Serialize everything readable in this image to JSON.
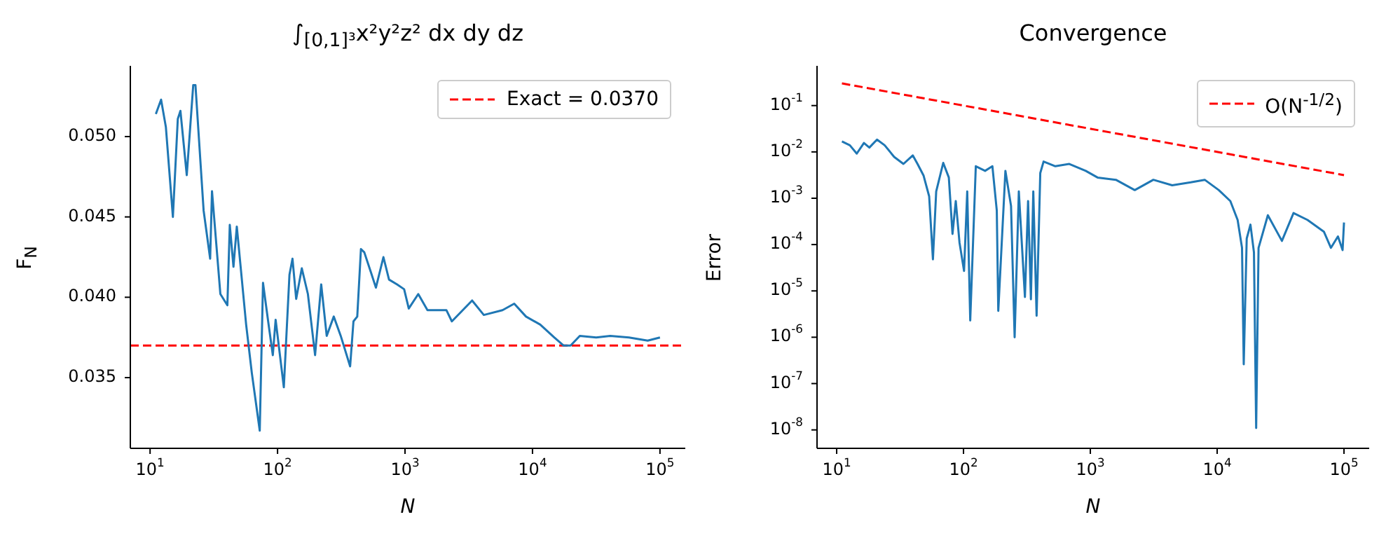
{
  "chart_data": [
    {
      "type": "line",
      "title": "∫$_{[0,1]³}$x²y²z² dx dy dz",
      "xlabel": "N",
      "ylabel": "F$_{N}$",
      "log": "x",
      "legend": "top right",
      "x": [
        11.1,
        12.2,
        13.3,
        15.1,
        16.5,
        17.3,
        19.4,
        21.8,
        22.7,
        26.3,
        29.6,
        30.6,
        35.6,
        40.4,
        42.2,
        45.1,
        47.9,
        56.7,
        62.8,
        72.5,
        76.9,
        84.4,
        91.8,
        96.6,
        112,
        124,
        131,
        140,
        155,
        173,
        197,
        220,
        243,
        276,
        313,
        371,
        394,
        422,
        451,
        479,
        543,
        591,
        677,
        749,
        866,
        984,
        1070,
        1270,
        1500,
        2110,
        2330,
        3360,
        4150,
        5820,
        7190,
        8890,
        11500,
        14800,
        17500,
        19900,
        23500,
        31600,
        40700,
        57100,
        80100,
        100000
      ],
      "series": [
        {
          "color": "#1f77b4",
          "values": [
            0.0514,
            0.0523,
            0.0506,
            0.045,
            0.0511,
            0.0516,
            0.0476,
            0.0532,
            0.0532,
            0.0454,
            0.0424,
            0.0466,
            0.0402,
            0.0395,
            0.0445,
            0.0419,
            0.0444,
            0.0383,
            0.0353,
            0.0317,
            0.0409,
            0.0385,
            0.0364,
            0.0386,
            0.0344,
            0.0414,
            0.0424,
            0.0399,
            0.0418,
            0.0402,
            0.0364,
            0.0408,
            0.0376,
            0.0388,
            0.0376,
            0.0357,
            0.0385,
            0.0388,
            0.043,
            0.0428,
            0.0415,
            0.0406,
            0.0425,
            0.0411,
            0.0408,
            0.0405,
            0.0393,
            0.0402,
            0.0392,
            0.0392,
            0.0385,
            0.0398,
            0.0389,
            0.0392,
            0.0396,
            0.0388,
            0.0383,
            0.0375,
            0.037,
            0.037,
            0.0376,
            0.0375,
            0.0376,
            0.0375,
            0.0373,
            0.0375
          ]
        }
      ],
      "ref_lines": [
        {
          "axis": "y",
          "value": 0.037,
          "label": "Exact = 0.0370",
          "color": "#ff0000",
          "line_style": "dashed"
        }
      ],
      "xlim": [
        7,
        158000
      ],
      "xticks": [
        {
          "value": 10,
          "label": "10$^{1}$"
        },
        {
          "value": 100,
          "label": "10$^{2}$"
        },
        {
          "value": 1000,
          "label": "10$^{3}$"
        },
        {
          "value": 10000,
          "label": "10$^{4}$"
        },
        {
          "value": 100000,
          "label": "10$^{5}$"
        }
      ],
      "ylim": [
        0.0306,
        0.0544
      ],
      "yticks": [
        {
          "value": 0.035,
          "label": "0.035"
        },
        {
          "value": 0.04,
          "label": "0.040"
        },
        {
          "value": 0.045,
          "label": "0.045"
        },
        {
          "value": 0.05,
          "label": "0.050"
        }
      ]
    },
    {
      "type": "line",
      "title": "Convergence",
      "xlabel": "N",
      "ylabel": "Error",
      "log": "xy",
      "legend": "top right",
      "series": [
        {
          "color": "#1f77b4",
          "x": [
            11,
            12.7,
            14.4,
            16.4,
            18.1,
            20.8,
            23.9,
            28.4,
            33.6,
            39.8,
            43.4,
            48.4,
            53.6,
            57.4,
            60.9,
            69.2,
            76.6,
            81.9,
            86.9,
            93,
            101,
            107,
            113,
            125,
            148,
            169,
            183,
            188,
            214,
            237,
            253,
            273,
            305,
            323,
            340,
            355,
            377,
            403,
            428,
            530,
            683,
            919,
            1140,
            1590,
            2240,
            3140,
            4420,
            6190,
            7980,
            10300,
            12700,
            14500,
            15700,
            16200,
            17100,
            18300,
            19500,
            20300,
            21200,
            25100,
            32400,
            40000,
            51600,
            69400,
            78900,
            89600,
            97500,
            100000
          ],
          "values": [
            0.0168,
            0.0139,
            0.0092,
            0.0156,
            0.0124,
            0.0184,
            0.0139,
            0.0078,
            0.0055,
            0.0084,
            0.0055,
            0.0031,
            0.0011,
            4.8e-05,
            0.0014,
            0.0058,
            0.0028,
            0.00017,
            0.00087,
            0.00011,
            2.7e-05,
            0.0014,
            2.3e-06,
            0.0049,
            0.0039,
            0.0049,
            0.00054,
            3.7e-06,
            0.0039,
            0.00068,
            1e-06,
            0.0014,
            7.4e-06,
            0.00087,
            6.6e-06,
            0.0014,
            2.9e-06,
            0.0035,
            0.0062,
            0.0049,
            0.0055,
            0.0039,
            0.0028,
            0.0025,
            0.0015,
            0.0025,
            0.0019,
            0.0022,
            0.0025,
            0.0015,
            0.00087,
            0.00034,
            8.5e-05,
            2.6e-07,
            0.000135,
            0.00027,
            6.8e-05,
            1.1e-08,
            8.5e-05,
            0.00043,
            0.00012,
            0.00048,
            0.00034,
            0.00019,
            8.5e-05,
            0.00015,
            7.6e-05,
            0.0003
          ]
        },
        {
          "name": "O(N$^{-1/2}$)",
          "color": "#ff0000",
          "line_style": "dashed",
          "x": [
            11,
            100000
          ],
          "values": [
            0.3015,
            0.00316
          ]
        }
      ],
      "xlim": [
        7,
        158000
      ],
      "xticks": [
        {
          "value": 10,
          "label": "10$^{1}$"
        },
        {
          "value": 100,
          "label": "10$^{2}$"
        },
        {
          "value": 1000,
          "label": "10$^{3}$"
        },
        {
          "value": 10000,
          "label": "10$^{4}$"
        },
        {
          "value": 100000,
          "label": "10$^{5}$"
        }
      ],
      "ylim": [
        4e-09,
        0.72
      ],
      "yticks": [
        {
          "value": 1e-08,
          "label": "10$^{-8}$"
        },
        {
          "value": 1e-07,
          "label": "10$^{-7}$"
        },
        {
          "value": 1e-06,
          "label": "10$^{-6}$"
        },
        {
          "value": 1e-05,
          "label": "10$^{-5}$"
        },
        {
          "value": 0.0001,
          "label": "10$^{-4}$"
        },
        {
          "value": 0.001,
          "label": "10$^{-3}$"
        },
        {
          "value": 0.01,
          "label": "10$^{-2}$"
        },
        {
          "value": 0.1,
          "label": "10$^{-1}$"
        }
      ]
    }
  ]
}
